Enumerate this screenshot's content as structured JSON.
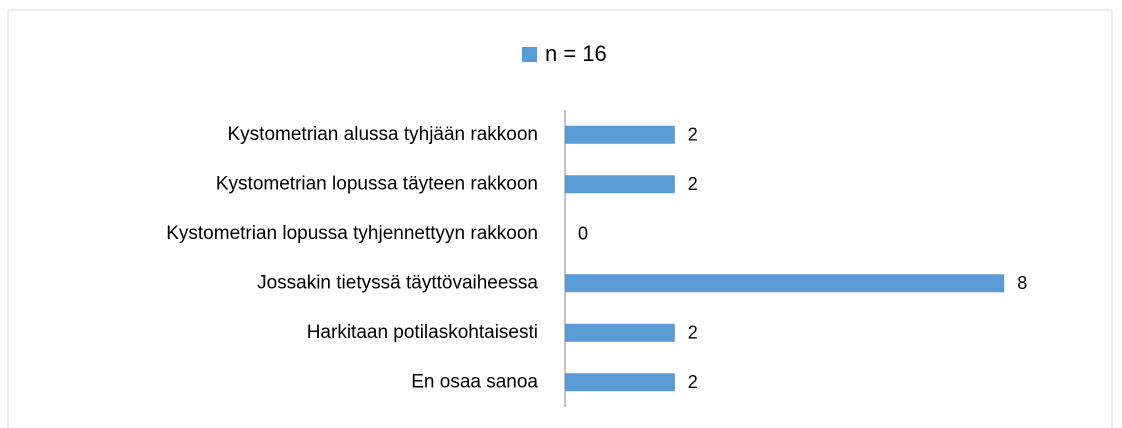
{
  "chart_data": {
    "type": "bar",
    "orientation": "horizontal",
    "categories": [
      "Kystometrian alussa tyhjään rakkoon",
      "Kystometrian lopussa täyteen rakkoon",
      "Kystometrian lopussa tyhjennettyyn rakkoon",
      "Jossakin tietyssä täyttövaiheessa",
      "Harkitaan potilaskohtaisesti",
      "En osaa sanoa"
    ],
    "series": [
      {
        "name": "n = 16",
        "color": "#5b9bd5",
        "values": [
          2,
          2,
          0,
          8,
          2,
          2
        ]
      }
    ],
    "xlim": [
      0,
      10
    ],
    "legend": "top"
  }
}
